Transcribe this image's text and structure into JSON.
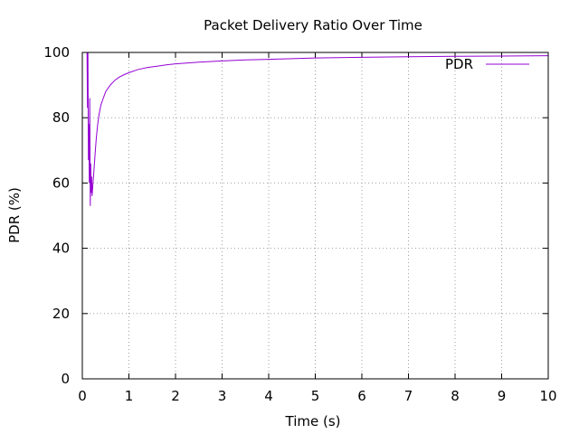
{
  "chart_data": {
    "type": "line",
    "title": "Packet Delivery Ratio Over Time",
    "xlabel": "Time (s)",
    "ylabel": "PDR (%)",
    "xlim": [
      0,
      10
    ],
    "ylim": [
      0,
      100
    ],
    "x_ticks": [
      "0",
      "1",
      "2",
      "3",
      "4",
      "5",
      "6",
      "7",
      "8",
      "9",
      "10"
    ],
    "y_ticks": [
      "0",
      "20",
      "40",
      "60",
      "80",
      "100"
    ],
    "grid": true,
    "legend_position": "top-right",
    "series": [
      {
        "name": "PDR",
        "color": "#9400d3",
        "x": [
          0.1,
          0.11,
          0.12,
          0.13,
          0.14,
          0.15,
          0.16,
          0.17,
          0.18,
          0.19,
          0.2,
          0.21,
          0.22,
          0.23,
          0.24,
          0.26,
          0.28,
          0.3,
          0.33,
          0.36,
          0.4,
          0.45,
          0.5,
          0.6,
          0.7,
          0.8,
          0.9,
          1.0,
          1.2,
          1.4,
          1.6,
          1.8,
          2.0,
          2.5,
          3.0,
          3.5,
          4.0,
          4.5,
          5.0,
          6.0,
          7.0,
          8.0,
          9.0,
          10.0
        ],
        "y": [
          100,
          83,
          100,
          67,
          78,
          60,
          86,
          53,
          66,
          57,
          62,
          56,
          58,
          60,
          62,
          66,
          70,
          74,
          78,
          81,
          84,
          86,
          88,
          90,
          91.5,
          92.5,
          93.2,
          93.8,
          94.8,
          95.4,
          95.8,
          96.2,
          96.5,
          97.0,
          97.4,
          97.7,
          97.9,
          98.1,
          98.3,
          98.5,
          98.7,
          98.8,
          98.9,
          99.0
        ]
      }
    ]
  }
}
